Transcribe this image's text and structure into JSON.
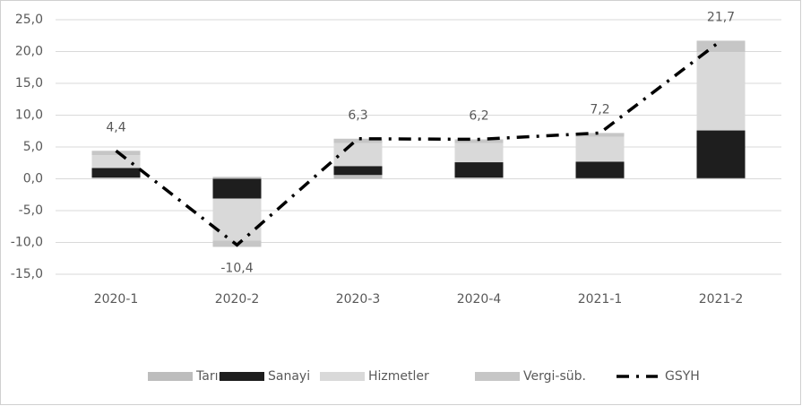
{
  "chart_data": {
    "type": "bar",
    "stacked": true,
    "categories": [
      "2020-1",
      "2020-2",
      "2020-3",
      "2020-4",
      "2021-1",
      "2021-2"
    ],
    "series": [
      {
        "name": "Tarım",
        "color": "#bdbdbd",
        "values": [
          0.2,
          0.3,
          0.6,
          0.2,
          0.1,
          0.1
        ]
      },
      {
        "name": "Sanayi",
        "color": "#1e1e1e",
        "values": [
          1.5,
          -3.1,
          1.4,
          2.4,
          2.6,
          7.5
        ]
      },
      {
        "name": "Hizmetler",
        "color": "#d9d9d9",
        "values": [
          2.0,
          -6.6,
          3.6,
          3.0,
          3.9,
          12.3
        ]
      },
      {
        "name": "Vergi-süb.",
        "color": "#c6c6c6",
        "values": [
          0.7,
          -1.0,
          0.7,
          0.6,
          0.6,
          1.8
        ]
      },
      {
        "name": "GSYH",
        "type": "line",
        "color": "#000000",
        "values": [
          4.4,
          -10.4,
          6.3,
          6.2,
          7.2,
          21.7
        ],
        "value_labels": [
          "4,4",
          "-10,4",
          "6,3",
          "6,2",
          "7,2",
          "21,7"
        ]
      }
    ],
    "ylim": [
      -15,
      25
    ],
    "yticks": [
      {
        "value": -15,
        "label": "-15,0"
      },
      {
        "value": -10,
        "label": "-10,0"
      },
      {
        "value": -5,
        "label": "-5,0"
      },
      {
        "value": 0,
        "label": "0,0"
      },
      {
        "value": 5,
        "label": "5,0"
      },
      {
        "value": 10,
        "label": "10,0"
      },
      {
        "value": 15,
        "label": "15,0"
      },
      {
        "value": 20,
        "label": "20,0"
      },
      {
        "value": 25,
        "label": "25,0"
      }
    ],
    "grid": true,
    "legend": "bottom"
  }
}
